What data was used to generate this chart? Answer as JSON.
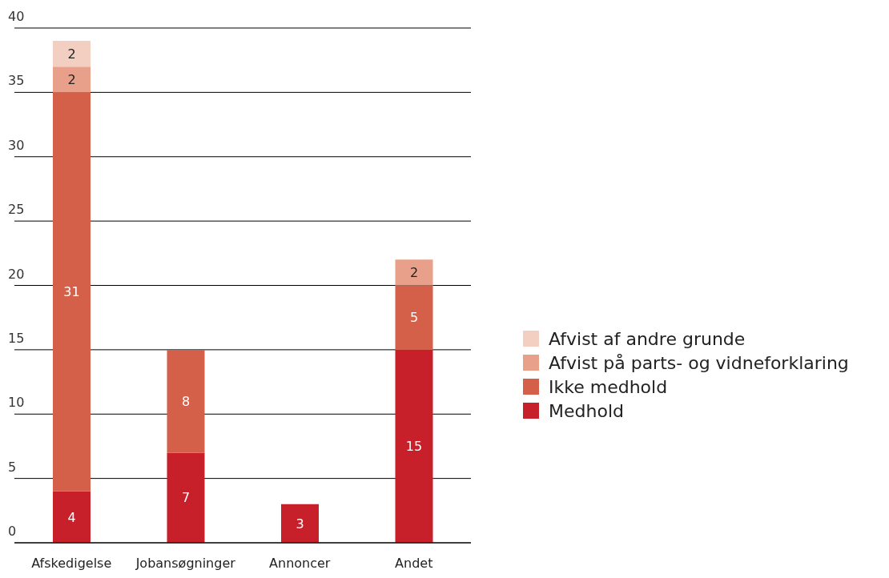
{
  "chart_data": {
    "type": "bar",
    "stacked": true,
    "categories": [
      "Afskedigelse",
      "Jobansøgninger",
      "Annoncer",
      "Andet"
    ],
    "series": [
      {
        "name": "Medhold",
        "color": "#c8202a",
        "values": [
          4,
          7,
          3,
          15
        ]
      },
      {
        "name": "Ikke medhold",
        "color": "#d4604a",
        "values": [
          31,
          8,
          null,
          5
        ]
      },
      {
        "name": "Afvist på parts- og vidneforklaring",
        "color": "#e8a08a",
        "values": [
          2,
          null,
          null,
          2
        ]
      },
      {
        "name": "Afvist af andre grunde",
        "color": "#f2cfc0",
        "values": [
          2,
          null,
          null,
          null
        ]
      }
    ],
    "ylim": [
      0,
      40
    ],
    "yticks": [
      0,
      5,
      10,
      15,
      20,
      25,
      30,
      35,
      40
    ],
    "grid": "y",
    "legend": "right",
    "data_labels": true
  }
}
